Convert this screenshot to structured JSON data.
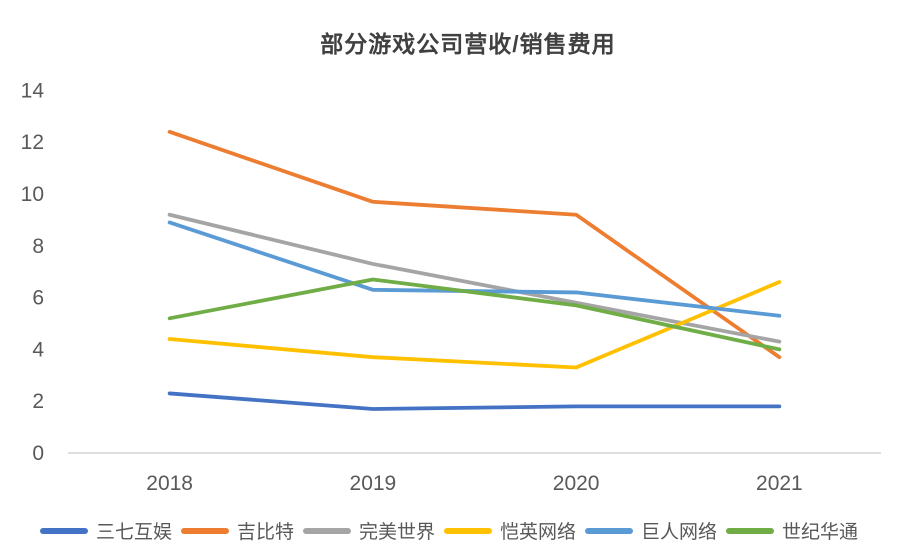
{
  "chart_data": {
    "type": "line",
    "title": "部分游戏公司营收/销售费用",
    "categories": [
      "2018",
      "2019",
      "2020",
      "2021"
    ],
    "series": [
      {
        "name": "三七互娱",
        "color": "#4472C4",
        "values": [
          2.3,
          1.7,
          1.8,
          1.8
        ]
      },
      {
        "name": "吉比特",
        "color": "#ED7D31",
        "values": [
          12.4,
          9.7,
          9.2,
          3.7
        ]
      },
      {
        "name": "完美世界",
        "color": "#A5A5A5",
        "values": [
          9.2,
          7.3,
          5.8,
          4.3
        ]
      },
      {
        "name": "恺英网络",
        "color": "#FFC000",
        "values": [
          4.4,
          3.7,
          3.3,
          6.6
        ]
      },
      {
        "name": "巨人网络",
        "color": "#5B9BD5",
        "values": [
          8.9,
          6.3,
          6.2,
          5.3
        ]
      },
      {
        "name": "世纪华通",
        "color": "#70AD47",
        "values": [
          5.2,
          6.7,
          5.7,
          4.0
        ]
      }
    ],
    "xlabel": "",
    "ylabel": "",
    "ylim": [
      0,
      14
    ],
    "yticks": [
      0,
      2,
      4,
      6,
      8,
      10,
      12,
      14
    ],
    "grid": false,
    "legend_position": "bottom",
    "axis_line_color": "#D9D9D9",
    "tick_text_color": "#595959",
    "title_color": "#404040"
  }
}
